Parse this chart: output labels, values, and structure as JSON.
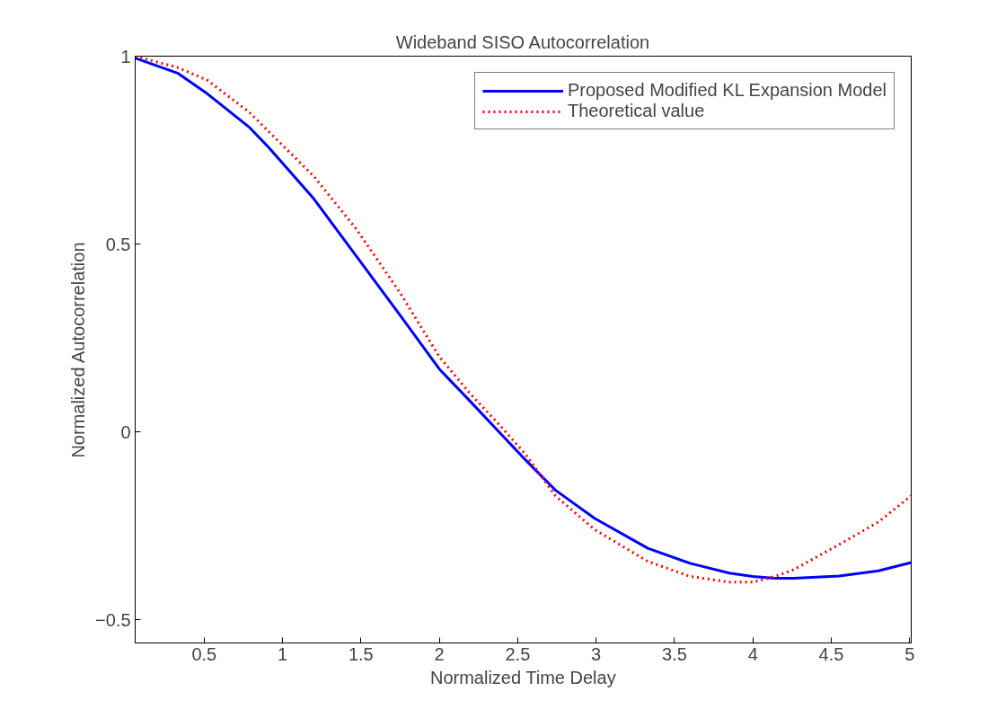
{
  "chart_data": {
    "type": "line",
    "title": "Wideband SISO Autocorrelation",
    "xlabel": "Normalized Time Delay",
    "ylabel": "Normalized Autocorrelation",
    "x": [
      0.06,
      0.33,
      0.52,
      0.79,
      0.91,
      1.2,
      1.47,
      1.75,
      2.0,
      2.2,
      2.38,
      2.55,
      2.74,
      2.99,
      3.33,
      3.6,
      3.85,
      4.0,
      4.14,
      4.26,
      4.55,
      4.8,
      5.01
    ],
    "series": [
      {
        "name": "Proposed Modified KL Expansion Model",
        "color": "#0000ff",
        "line_style": "solid",
        "values": [
          0.995,
          0.955,
          0.9,
          0.81,
          0.758,
          0.62,
          0.468,
          0.31,
          0.167,
          0.08,
          0.0,
          -0.075,
          -0.155,
          -0.23,
          -0.31,
          -0.35,
          -0.376,
          -0.385,
          -0.39,
          -0.39,
          -0.384,
          -0.37,
          -0.348
        ]
      },
      {
        "name": "Theoretical value",
        "color": "#ff0000",
        "line_style": "dotted",
        "values": [
          1.0,
          0.97,
          0.936,
          0.85,
          0.8,
          0.68,
          0.54,
          0.37,
          0.2,
          0.1,
          0.02,
          -0.06,
          -0.17,
          -0.26,
          -0.345,
          -0.385,
          -0.4,
          -0.4,
          -0.385,
          -0.367,
          -0.3,
          -0.24,
          -0.17
        ]
      }
    ],
    "xlim": [
      0.06,
      5.01
    ],
    "ylim": [
      -0.562,
      1
    ],
    "xticks": [
      0.5,
      1,
      1.5,
      2,
      2.5,
      3,
      3.5,
      4,
      4.5,
      5
    ],
    "yticks": [
      -0.5,
      0,
      0.5,
      1
    ],
    "grid": false,
    "legend": "top right",
    "marker": "none"
  }
}
